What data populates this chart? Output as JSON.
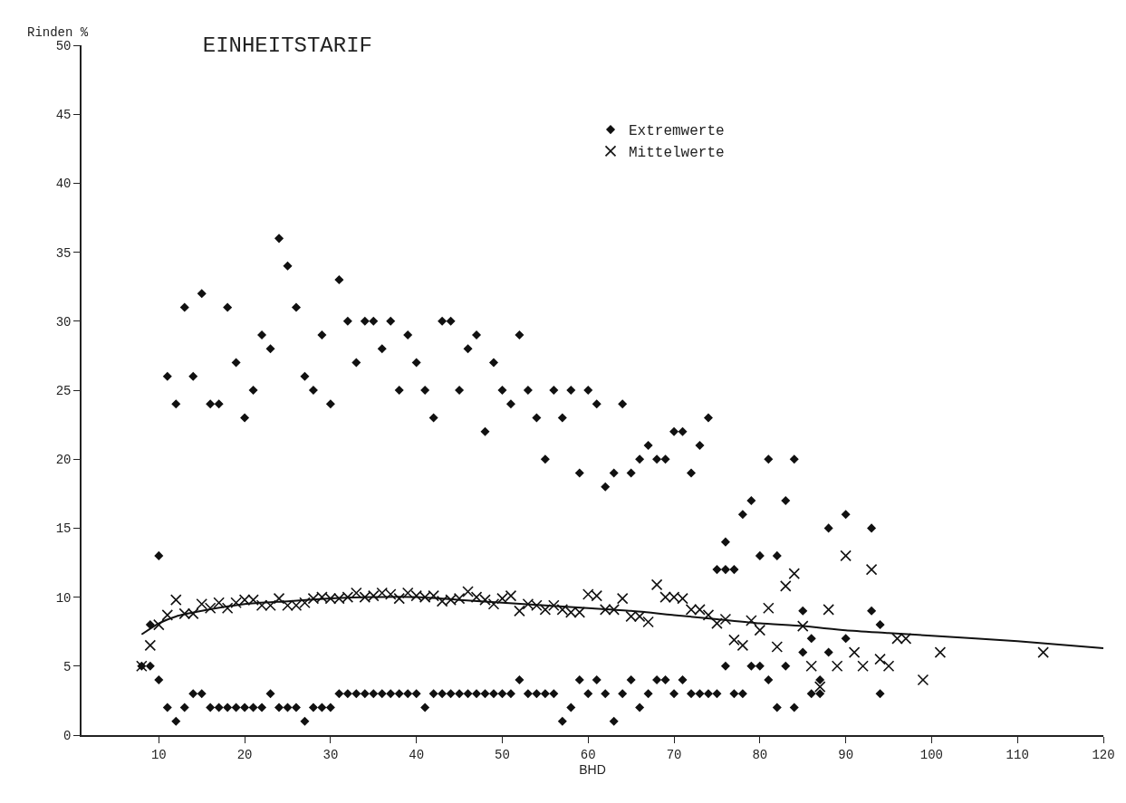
{
  "chart_data": {
    "type": "scatter",
    "title": "EINHEITSTARIF",
    "xlabel": "BHD",
    "ylabel": "Rinden %",
    "xlim": [
      1,
      120
    ],
    "xticks": [
      10,
      20,
      30,
      40,
      50,
      60,
      70,
      80,
      90,
      100,
      110,
      120
    ],
    "ylim": [
      0,
      50
    ],
    "yticks": [
      0,
      5,
      10,
      15,
      20,
      25,
      30,
      35,
      40,
      45,
      50
    ],
    "grid": false,
    "legend": "top right",
    "series": [
      {
        "name": "Extremwerte",
        "color": "#111111",
        "marker": "diamond",
        "x": [
          8,
          9,
          9,
          10,
          10,
          11,
          11,
          12,
          12,
          13,
          13,
          14,
          14,
          15,
          15,
          16,
          16,
          17,
          17,
          18,
          18,
          19,
          19,
          20,
          20,
          21,
          21,
          22,
          22,
          23,
          23,
          24,
          24,
          25,
          25,
          26,
          26,
          27,
          27,
          28,
          28,
          29,
          29,
          30,
          30,
          31,
          31,
          32,
          32,
          33,
          33,
          34,
          34,
          35,
          35,
          36,
          36,
          37,
          37,
          38,
          38,
          39,
          39,
          40,
          40,
          41,
          41,
          42,
          42,
          43,
          43,
          44,
          44,
          45,
          45,
          46,
          46,
          47,
          47,
          48,
          48,
          49,
          49,
          50,
          50,
          51,
          51,
          52,
          52,
          53,
          53,
          54,
          54,
          55,
          55,
          56,
          56,
          57,
          57,
          58,
          58,
          59,
          59,
          60,
          60,
          61,
          61,
          62,
          62,
          63,
          63,
          64,
          64,
          65,
          65,
          66,
          66,
          67,
          67,
          68,
          68,
          69,
          69,
          70,
          70,
          71,
          71,
          72,
          72,
          73,
          73,
          74,
          74,
          75,
          75,
          76,
          76,
          76,
          77,
          77,
          78,
          78,
          79,
          79,
          80,
          80,
          81,
          81,
          82,
          82,
          83,
          83,
          84,
          84,
          85,
          85,
          86,
          86,
          87,
          87,
          88,
          88,
          90,
          90,
          93,
          93,
          94,
          94
        ],
        "values": [
          5,
          8,
          5,
          13,
          4,
          26,
          2,
          24,
          1,
          31,
          2,
          26,
          3,
          32,
          3,
          24,
          2,
          24,
          2,
          31,
          2,
          27,
          2,
          23,
          2,
          25,
          2,
          29,
          2,
          28,
          3,
          36,
          2,
          34,
          2,
          31,
          2,
          26,
          1,
          25,
          2,
          29,
          2,
          24,
          2,
          33,
          3,
          30,
          3,
          27,
          3,
          30,
          3,
          30,
          3,
          28,
          3,
          30,
          3,
          25,
          3,
          29,
          3,
          27,
          3,
          25,
          2,
          23,
          3,
          30,
          3,
          30,
          3,
          25,
          3,
          28,
          3,
          29,
          3,
          22,
          3,
          27,
          3,
          25,
          3,
          24,
          3,
          29,
          4,
          25,
          3,
          23,
          3,
          20,
          3,
          25,
          3,
          23,
          1,
          25,
          2,
          19,
          4,
          25,
          3,
          24,
          4,
          18,
          3,
          19,
          1,
          24,
          3,
          19,
          4,
          20,
          2,
          21,
          3,
          20,
          4,
          20,
          4,
          22,
          3,
          22,
          4,
          19,
          3,
          21,
          3,
          23,
          3,
          12,
          3,
          14,
          12,
          5,
          12,
          3,
          16,
          3,
          17,
          5,
          13,
          5,
          20,
          4,
          13,
          2,
          17,
          5,
          20,
          2,
          9,
          6,
          7,
          3,
          4,
          3,
          15,
          6,
          16,
          7,
          15,
          9,
          8,
          3
        ]
      },
      {
        "name": "Mittelwerte",
        "color": "#111111",
        "marker": "cross",
        "x": [
          8,
          9,
          10,
          11,
          12,
          13,
          14,
          15,
          16,
          17,
          18,
          19,
          20,
          21,
          22,
          23,
          24,
          25,
          26,
          27,
          28,
          29,
          30,
          31,
          32,
          33,
          34,
          35,
          36,
          37,
          38,
          39,
          40,
          41,
          42,
          43,
          44,
          45,
          46,
          47,
          48,
          49,
          50,
          51,
          52,
          53,
          54,
          55,
          56,
          57,
          58,
          59,
          60,
          61,
          62,
          63,
          64,
          65,
          66,
          67,
          68,
          69,
          70,
          71,
          72,
          73,
          74,
          75,
          76,
          77,
          78,
          79,
          80,
          81,
          82,
          83,
          84,
          85,
          86,
          87,
          88,
          89,
          90,
          91,
          92,
          93,
          94,
          95,
          96,
          97,
          99,
          101,
          113
        ],
        "values": [
          5,
          6.5,
          8,
          8.7,
          9.8,
          8.8,
          8.8,
          9.5,
          9.2,
          9.6,
          9.2,
          9.6,
          9.8,
          9.8,
          9.4,
          9.4,
          9.9,
          9.4,
          9.4,
          9.6,
          9.9,
          10,
          9.9,
          9.9,
          10,
          10.3,
          10,
          10.1,
          10.3,
          10.2,
          9.9,
          10.3,
          10.1,
          10,
          10.1,
          9.7,
          9.8,
          9.9,
          10.4,
          10,
          9.8,
          9.5,
          9.9,
          10.1,
          9,
          9.5,
          9.4,
          9.1,
          9.4,
          9.1,
          8.9,
          8.9,
          10.2,
          10.1,
          9.1,
          9.1,
          9.9,
          8.6,
          8.6,
          8.2,
          10.9,
          10,
          10,
          9.9,
          9.1,
          9.1,
          8.7,
          8.1,
          8.4,
          6.9,
          6.5,
          8.3,
          7.6,
          9.2,
          6.4,
          10.8,
          11.7,
          7.9,
          5,
          3.5,
          9.1,
          5,
          13,
          6,
          5,
          12,
          5.5,
          5,
          7,
          7,
          4,
          6,
          6
        ]
      },
      {
        "type": "line",
        "color": "#111111",
        "marker": "none",
        "x": [
          8,
          10,
          12,
          15,
          20,
          25,
          30,
          35,
          40,
          45,
          50,
          55,
          60,
          65,
          70,
          75,
          80,
          85,
          90,
          95,
          100,
          110,
          120
        ],
        "values": [
          7.3,
          8.1,
          8.6,
          9.0,
          9.5,
          9.7,
          9.9,
          10.0,
          10.0,
          9.8,
          9.6,
          9.4,
          9.2,
          9.0,
          8.7,
          8.4,
          8.1,
          7.9,
          7.6,
          7.4,
          7.2,
          6.8,
          6.3
        ]
      }
    ]
  }
}
